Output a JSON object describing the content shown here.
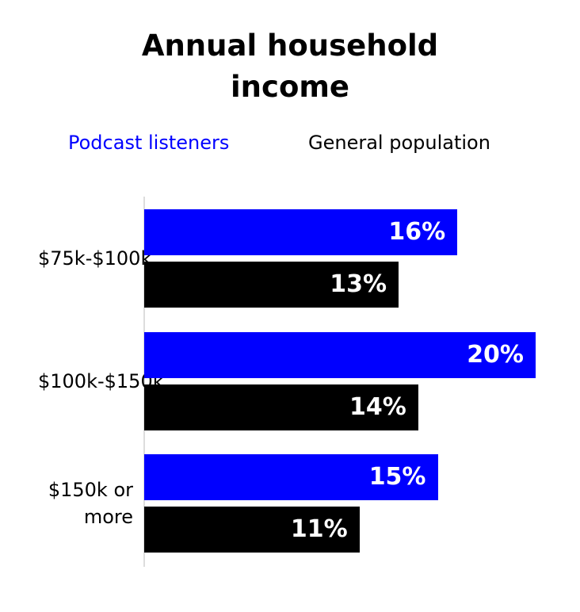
{
  "chart_data": {
    "type": "bar",
    "orientation": "horizontal",
    "title": "Annual household income",
    "categories": [
      "$75k-$100k",
      "$100k-$150k",
      "$150k or more"
    ],
    "series": [
      {
        "name": "Podcast listeners",
        "color": "#0000ff",
        "values": [
          16,
          20,
          15
        ],
        "value_labels": [
          "16%",
          "20%",
          "15%"
        ]
      },
      {
        "name": "General population",
        "color": "#000000",
        "values": [
          13,
          14,
          11
        ],
        "value_labels": [
          "13%",
          "14%",
          "11%"
        ]
      }
    ]
  }
}
